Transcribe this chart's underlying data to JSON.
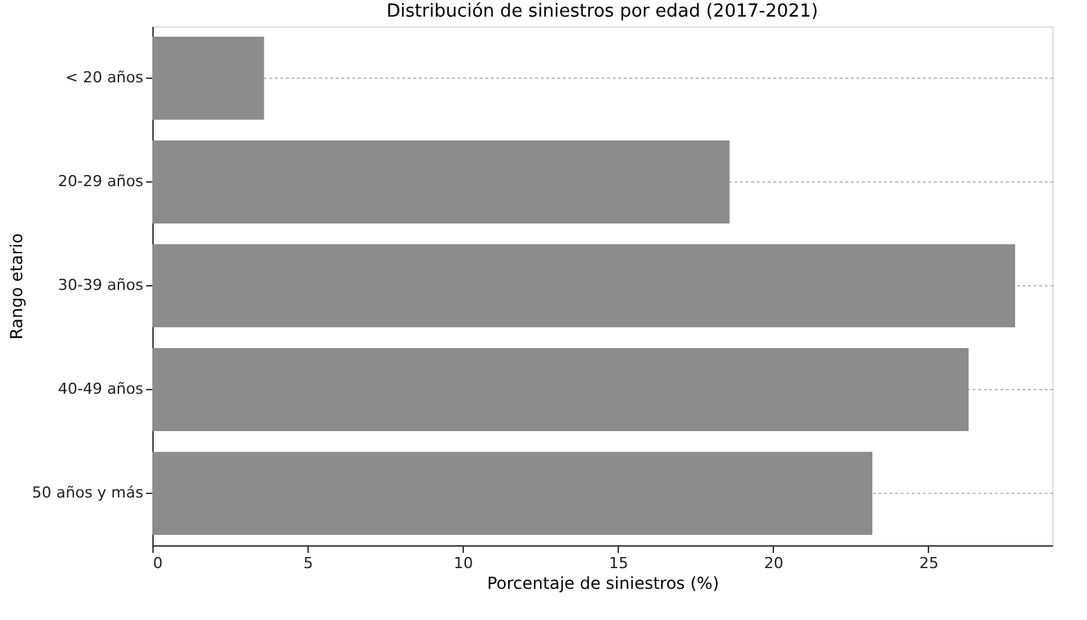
{
  "chart_data": {
    "type": "bar",
    "orientation": "horizontal",
    "title": "Distribución de siniestros por edad (2017-2021)",
    "xlabel": "Porcentaje de siniestros (%)",
    "ylabel": "Rango etario",
    "categories": [
      "< 20 años",
      "20-29 años",
      "30-39 años",
      "40-49 años",
      "50 años y más"
    ],
    "values": [
      3.6,
      18.6,
      27.8,
      26.3,
      23.2
    ],
    "color": "#8c8c8c",
    "xlim": [
      0,
      29
    ],
    "xticks": [
      0,
      5,
      10,
      15,
      20,
      25
    ],
    "grid": "y"
  }
}
